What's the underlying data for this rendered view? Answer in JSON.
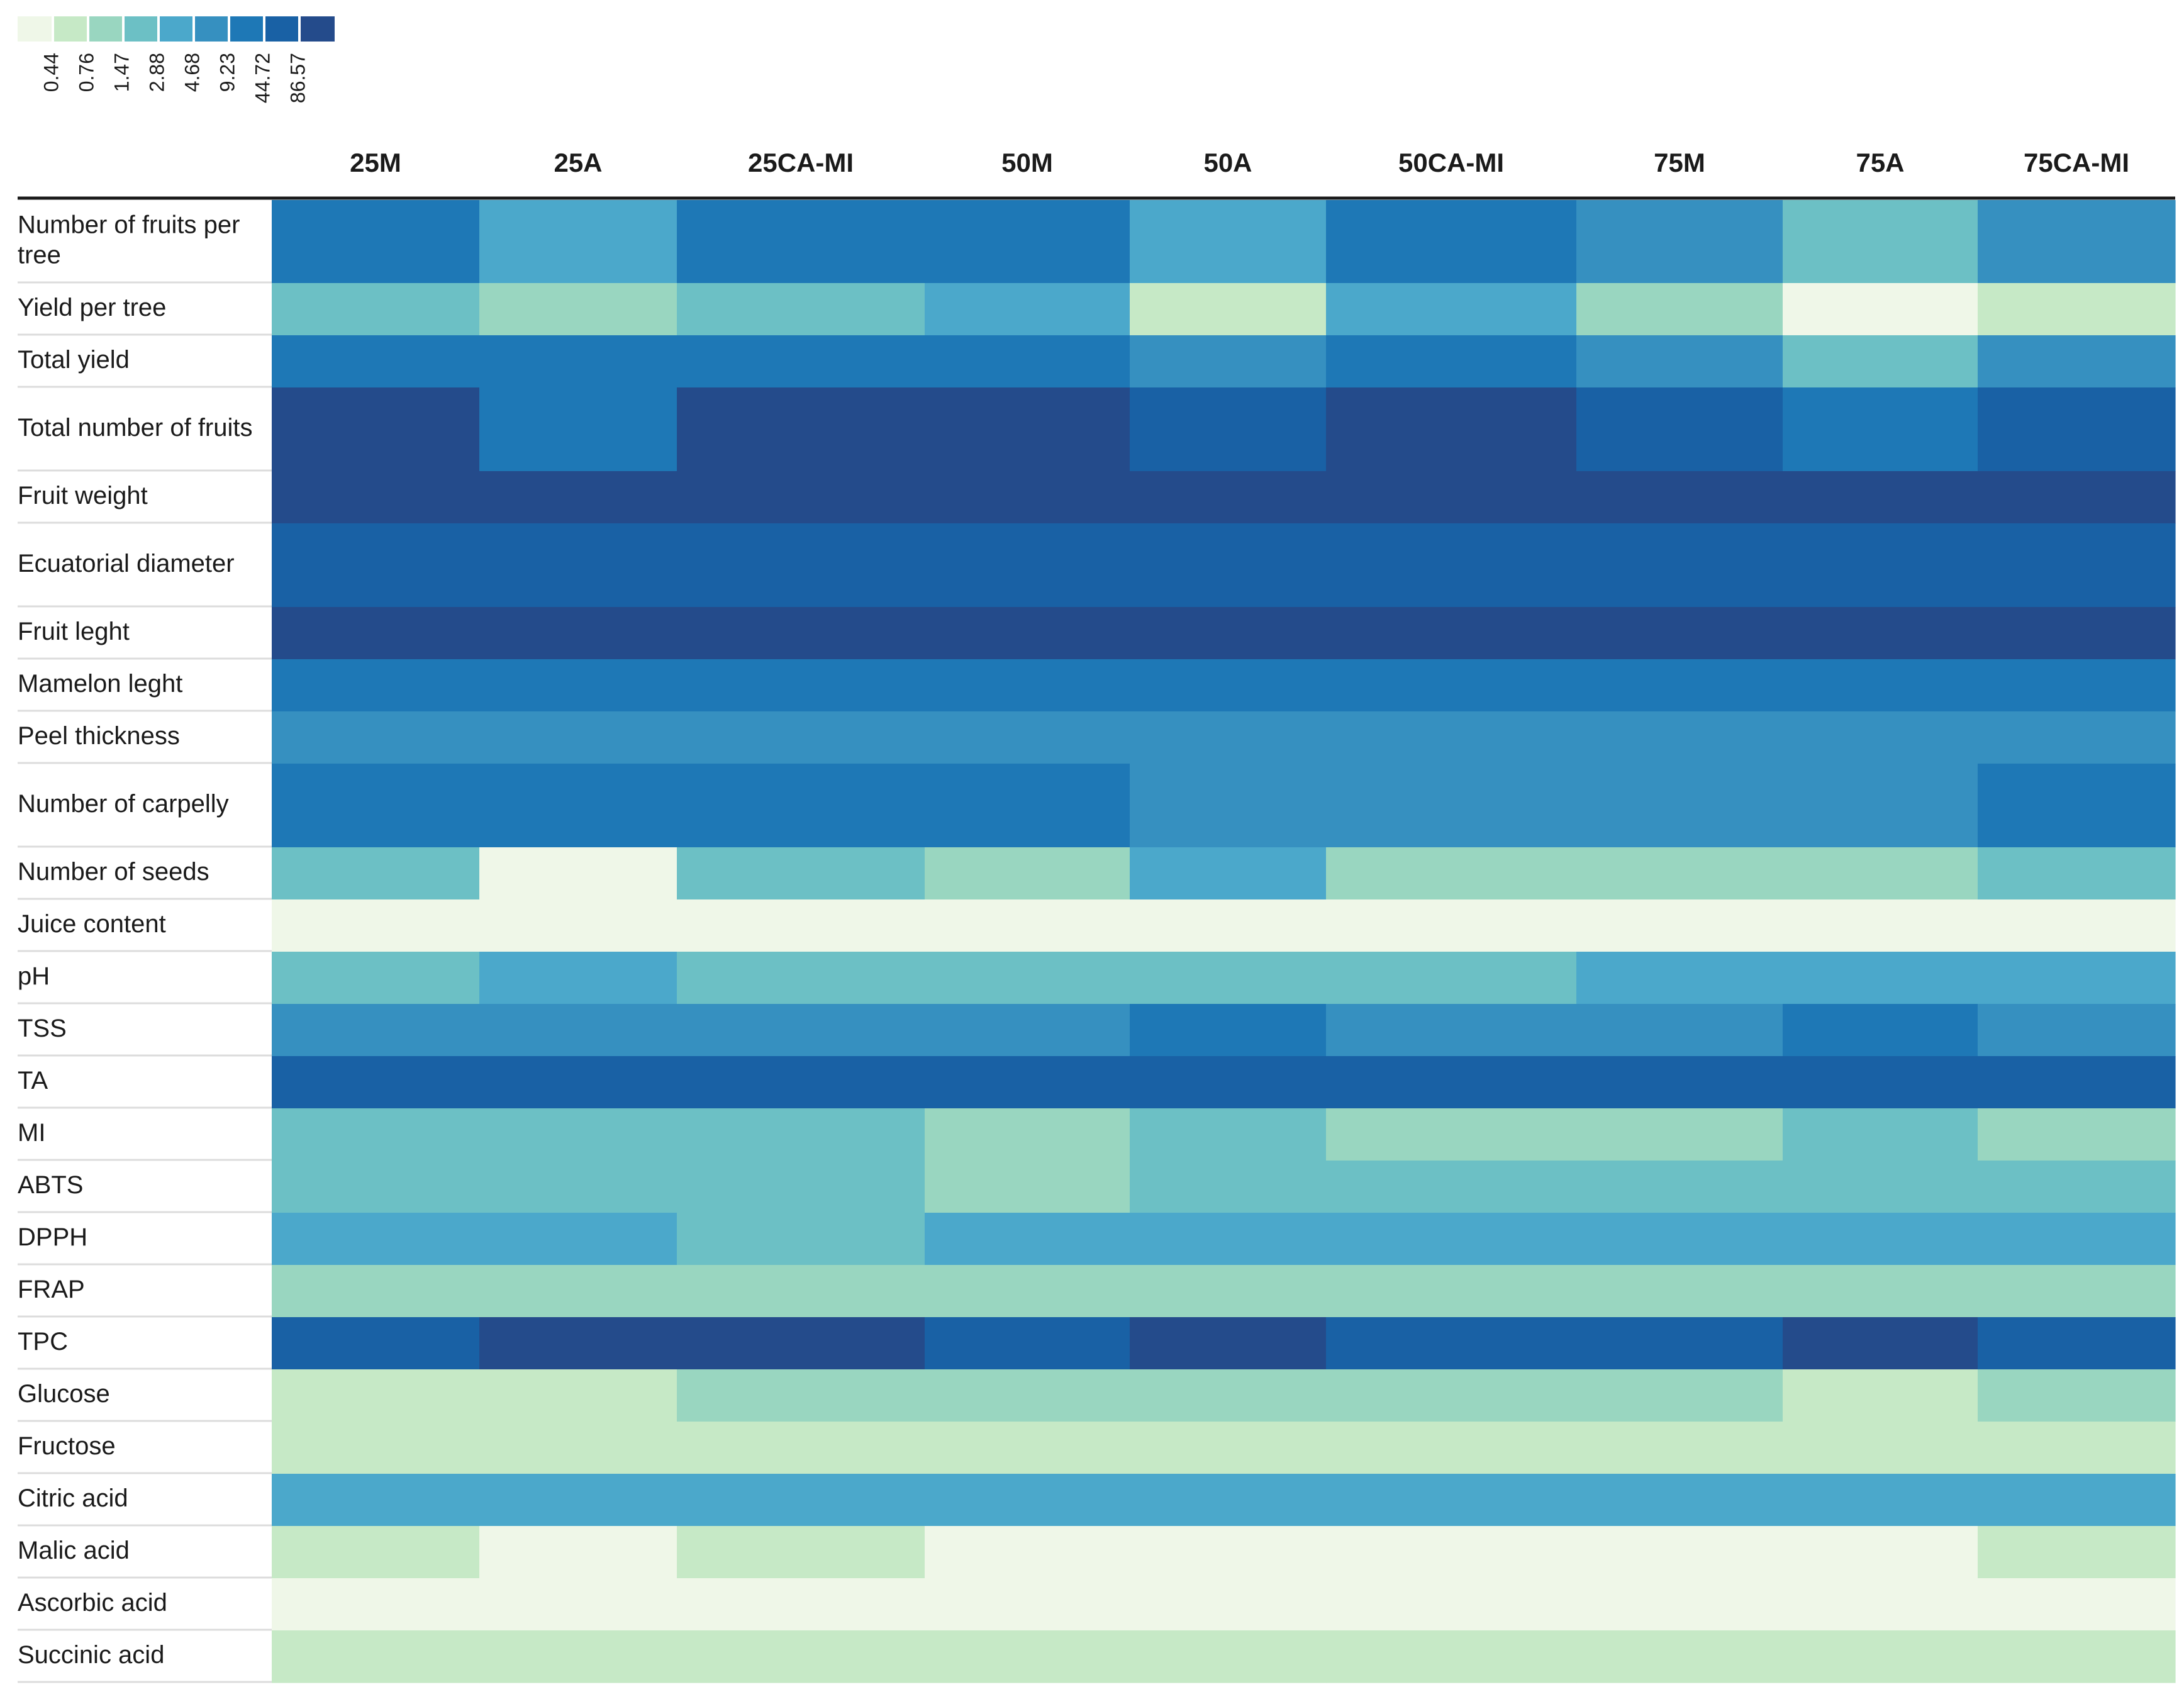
{
  "chart_data": {
    "type": "heatmap",
    "title": "",
    "xlabel": "",
    "ylabel": "",
    "columns": [
      "25M",
      "25A",
      "25CA-MI",
      "50M",
      "50A",
      "50CA-MI",
      "75M",
      "75A",
      "75CA-MI"
    ],
    "rows": [
      "Number of fruits per tree",
      "Yield per tree",
      "Total yield",
      "Total number of fruits",
      "Fruit weight",
      "Ecuatorial diameter",
      "Fruit leght",
      "Mamelon leght",
      "Peel thickness",
      "Number of carpelly",
      "Number of seeds",
      "Juice content",
      "pH",
      "TSS",
      "TA",
      "MI",
      "ABTS",
      "DPPH",
      "FRAP",
      "TPC",
      "Glucose",
      "Fructose",
      "Citric acid",
      "Malic acid",
      "Ascorbic acid",
      "Succinic acid"
    ],
    "legend": {
      "placement": "top-left",
      "breaks": [
        "0.44",
        "0.76",
        "1.47",
        "2.88",
        "4.68",
        "9.23",
        "44.72",
        "86.57"
      ],
      "colors": [
        "#eff7e8",
        "#c6e9c6",
        "#99d6c0",
        "#6cc0c5",
        "#4ba8cb",
        "#3690c0",
        "#1e78b6",
        "#1961a5",
        "#244b8b"
      ]
    },
    "color_bins": [
      [
        6,
        4,
        6,
        6,
        4,
        6,
        5,
        3,
        5
      ],
      [
        3,
        2,
        3,
        4,
        1,
        4,
        2,
        0,
        1
      ],
      [
        6,
        6,
        6,
        6,
        5,
        6,
        5,
        3,
        5
      ],
      [
        8,
        6,
        8,
        8,
        7,
        8,
        7,
        6,
        7
      ],
      [
        8,
        8,
        8,
        8,
        8,
        8,
        8,
        8,
        8
      ],
      [
        7,
        7,
        7,
        7,
        7,
        7,
        7,
        7,
        7
      ],
      [
        8,
        8,
        8,
        8,
        8,
        8,
        8,
        8,
        8
      ],
      [
        6,
        6,
        6,
        6,
        6,
        6,
        6,
        6,
        6
      ],
      [
        5,
        5,
        5,
        5,
        5,
        5,
        5,
        5,
        5
      ],
      [
        6,
        6,
        6,
        6,
        5,
        5,
        5,
        5,
        6
      ],
      [
        3,
        0,
        3,
        2,
        4,
        2,
        2,
        2,
        3
      ],
      [
        0,
        0,
        0,
        0,
        0,
        0,
        0,
        0,
        0
      ],
      [
        3,
        4,
        3,
        3,
        3,
        3,
        4,
        4,
        4
      ],
      [
        5,
        5,
        5,
        5,
        6,
        5,
        5,
        6,
        5
      ],
      [
        7,
        7,
        7,
        7,
        7,
        7,
        7,
        7,
        7
      ],
      [
        3,
        3,
        3,
        2,
        3,
        2,
        2,
        3,
        2
      ],
      [
        3,
        3,
        3,
        2,
        3,
        3,
        3,
        3,
        3
      ],
      [
        4,
        4,
        3,
        4,
        4,
        4,
        4,
        4,
        4
      ],
      [
        2,
        2,
        2,
        2,
        2,
        2,
        2,
        2,
        2
      ],
      [
        7,
        8,
        8,
        7,
        8,
        7,
        7,
        8,
        7
      ],
      [
        1,
        1,
        2,
        2,
        2,
        2,
        2,
        1,
        2
      ],
      [
        1,
        1,
        1,
        1,
        1,
        1,
        1,
        1,
        1
      ],
      [
        4,
        4,
        4,
        4,
        4,
        4,
        4,
        4,
        4
      ],
      [
        1,
        0,
        1,
        0,
        0,
        0,
        0,
        0,
        1
      ],
      [
        0,
        0,
        0,
        0,
        0,
        0,
        0,
        0,
        0
      ],
      [
        1,
        1,
        1,
        1,
        1,
        1,
        1,
        1,
        1
      ]
    ]
  }
}
